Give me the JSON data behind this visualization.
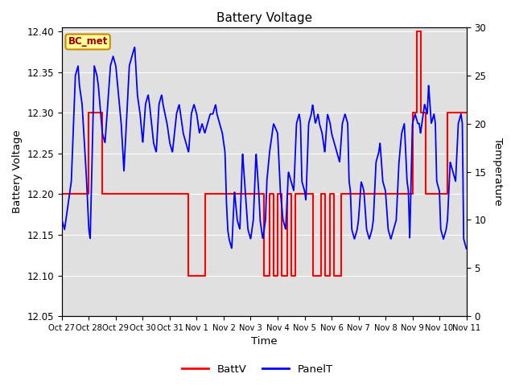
{
  "title": "Battery Voltage",
  "xlabel": "Time",
  "ylabel_left": "Battery Voltage",
  "ylabel_right": "Temperature",
  "ylim_left": [
    12.05,
    12.405
  ],
  "ylim_right": [
    0,
    30
  ],
  "yticks_left": [
    12.05,
    12.1,
    12.15,
    12.2,
    12.25,
    12.3,
    12.35,
    12.4
  ],
  "yticks_right": [
    0,
    5,
    10,
    15,
    20,
    25,
    30
  ],
  "xtick_labels": [
    "Oct 27",
    "Oct 28",
    "Oct 29",
    "Oct 30",
    "Oct 31",
    "Nov 1",
    "Nov 2",
    "Nov 3",
    "Nov 4",
    "Nov 5",
    "Nov 6",
    "Nov 7",
    "Nov 8",
    "Nov 9",
    "Nov 10",
    "Nov 11"
  ],
  "background_color": "#ffffff",
  "plot_bg_color": "#e0e0e0",
  "annotation_label": "BC_met",
  "annotation_color": "#ffff99",
  "annotation_border": "#cc8800",
  "annotation_text_color": "#990000",
  "batt_color": "#ff0000",
  "panel_color": "#0000ff",
  "legend_batt": "BattV",
  "legend_panel": "PanelT",
  "batt_baseline": 12.2,
  "batt_x": [
    0.0,
    1.0,
    1.0,
    1.5,
    1.5,
    4.7,
    4.7,
    5.3,
    5.3,
    7.05,
    7.05,
    7.35,
    7.35,
    7.5,
    7.5,
    7.7,
    7.7,
    7.85,
    7.85,
    8.0,
    8.0,
    8.15,
    8.15,
    8.35,
    8.35,
    8.5,
    8.5,
    8.65,
    8.65,
    8.8,
    8.8,
    9.3,
    9.3,
    9.6,
    9.6,
    9.75,
    9.75,
    9.95,
    9.95,
    10.1,
    10.1,
    10.35,
    10.35,
    13.0,
    13.0,
    13.15,
    13.15,
    13.3,
    13.3,
    13.5,
    13.5,
    13.7,
    13.7,
    14.0,
    14.0,
    14.3,
    14.3,
    15.0
  ],
  "batt_y": [
    12.2,
    12.2,
    12.3,
    12.3,
    12.2,
    12.2,
    12.1,
    12.1,
    12.2,
    12.2,
    12.2,
    12.2,
    12.2,
    12.2,
    12.1,
    12.1,
    12.2,
    12.2,
    12.1,
    12.1,
    12.2,
    12.2,
    12.1,
    12.1,
    12.2,
    12.2,
    12.1,
    12.1,
    12.2,
    12.2,
    12.2,
    12.2,
    12.1,
    12.1,
    12.2,
    12.2,
    12.1,
    12.1,
    12.2,
    12.2,
    12.1,
    12.1,
    12.2,
    12.2,
    12.3,
    12.3,
    12.4,
    12.4,
    12.3,
    12.3,
    12.2,
    12.2,
    12.2,
    12.2,
    12.2,
    12.2,
    12.3,
    12.3
  ],
  "panel_temp_points": [
    [
      0.0,
      10
    ],
    [
      0.1,
      9
    ],
    [
      0.2,
      11
    ],
    [
      0.3,
      13
    ],
    [
      0.35,
      14
    ],
    [
      0.5,
      25
    ],
    [
      0.6,
      26
    ],
    [
      0.65,
      24
    ],
    [
      0.75,
      22
    ],
    [
      0.9,
      15
    ],
    [
      1.0,
      9
    ],
    [
      1.05,
      8
    ],
    [
      1.2,
      26
    ],
    [
      1.3,
      25
    ],
    [
      1.35,
      24
    ],
    [
      1.5,
      19
    ],
    [
      1.6,
      18
    ],
    [
      1.8,
      26
    ],
    [
      1.9,
      27
    ],
    [
      2.0,
      26
    ],
    [
      2.1,
      23
    ],
    [
      2.2,
      20
    ],
    [
      2.3,
      15
    ],
    [
      2.5,
      26
    ],
    [
      2.6,
      27
    ],
    [
      2.7,
      28
    ],
    [
      2.8,
      23
    ],
    [
      2.9,
      21
    ],
    [
      3.0,
      18
    ],
    [
      3.1,
      22
    ],
    [
      3.2,
      23
    ],
    [
      3.25,
      22
    ],
    [
      3.4,
      18
    ],
    [
      3.5,
      17
    ],
    [
      3.6,
      22
    ],
    [
      3.7,
      23
    ],
    [
      3.75,
      22
    ],
    [
      3.9,
      20
    ],
    [
      4.0,
      18
    ],
    [
      4.1,
      17
    ],
    [
      4.25,
      21
    ],
    [
      4.35,
      22
    ],
    [
      4.4,
      21
    ],
    [
      4.5,
      19
    ],
    [
      4.6,
      18
    ],
    [
      4.7,
      17
    ],
    [
      4.8,
      21
    ],
    [
      4.9,
      22
    ],
    [
      5.0,
      21
    ],
    [
      5.1,
      19
    ],
    [
      5.2,
      20
    ],
    [
      5.3,
      19
    ],
    [
      5.4,
      20
    ],
    [
      5.5,
      21
    ],
    [
      5.55,
      21
    ],
    [
      5.6,
      21
    ],
    [
      5.7,
      22
    ],
    [
      5.75,
      21
    ],
    [
      5.85,
      20
    ],
    [
      5.95,
      19
    ],
    [
      6.0,
      18
    ],
    [
      6.05,
      17
    ],
    [
      6.1,
      12
    ],
    [
      6.15,
      9
    ],
    [
      6.2,
      8
    ],
    [
      6.3,
      7
    ],
    [
      6.4,
      13
    ],
    [
      6.5,
      10
    ],
    [
      6.6,
      9
    ],
    [
      6.7,
      17
    ],
    [
      6.8,
      13
    ],
    [
      6.9,
      9
    ],
    [
      7.0,
      8
    ],
    [
      7.1,
      10
    ],
    [
      7.2,
      17
    ],
    [
      7.3,
      13
    ],
    [
      7.35,
      10
    ],
    [
      7.45,
      8
    ],
    [
      7.55,
      10
    ],
    [
      7.6,
      14
    ],
    [
      7.7,
      17
    ],
    [
      7.75,
      18
    ],
    [
      7.85,
      20
    ],
    [
      8.0,
      19
    ],
    [
      8.1,
      13
    ],
    [
      8.2,
      10
    ],
    [
      8.3,
      9
    ],
    [
      8.4,
      15
    ],
    [
      8.5,
      14
    ],
    [
      8.6,
      13
    ],
    [
      8.7,
      20
    ],
    [
      8.8,
      21
    ],
    [
      8.85,
      20
    ],
    [
      8.9,
      14
    ],
    [
      9.0,
      13
    ],
    [
      9.05,
      12
    ],
    [
      9.15,
      20
    ],
    [
      9.25,
      21
    ],
    [
      9.3,
      22
    ],
    [
      9.4,
      20
    ],
    [
      9.5,
      21
    ],
    [
      9.55,
      20
    ],
    [
      9.65,
      19
    ],
    [
      9.7,
      18
    ],
    [
      9.75,
      17
    ],
    [
      9.85,
      21
    ],
    [
      9.95,
      20
    ],
    [
      10.0,
      19
    ],
    [
      10.1,
      18
    ],
    [
      10.2,
      17
    ],
    [
      10.3,
      16
    ],
    [
      10.4,
      20
    ],
    [
      10.5,
      21
    ],
    [
      10.6,
      20
    ],
    [
      10.65,
      14
    ],
    [
      10.7,
      13
    ],
    [
      10.75,
      9
    ],
    [
      10.85,
      8
    ],
    [
      10.95,
      9
    ],
    [
      11.0,
      10
    ],
    [
      11.1,
      14
    ],
    [
      11.2,
      13
    ],
    [
      11.3,
      9
    ],
    [
      11.4,
      8
    ],
    [
      11.5,
      9
    ],
    [
      11.55,
      10
    ],
    [
      11.65,
      16
    ],
    [
      11.75,
      17
    ],
    [
      11.8,
      18
    ],
    [
      11.9,
      14
    ],
    [
      12.0,
      13
    ],
    [
      12.1,
      9
    ],
    [
      12.2,
      8
    ],
    [
      12.3,
      9
    ],
    [
      12.4,
      10
    ],
    [
      12.5,
      16
    ],
    [
      12.6,
      19
    ],
    [
      12.7,
      20
    ],
    [
      12.8,
      14
    ],
    [
      12.85,
      13
    ],
    [
      12.9,
      8
    ],
    [
      13.0,
      20
    ],
    [
      13.1,
      21
    ],
    [
      13.2,
      20
    ],
    [
      13.25,
      20
    ],
    [
      13.3,
      19
    ],
    [
      13.35,
      20
    ],
    [
      13.45,
      22
    ],
    [
      13.55,
      21
    ],
    [
      13.6,
      24
    ],
    [
      13.7,
      20
    ],
    [
      13.8,
      21
    ],
    [
      13.85,
      20
    ],
    [
      13.9,
      14
    ],
    [
      14.0,
      13
    ],
    [
      14.05,
      9
    ],
    [
      14.15,
      8
    ],
    [
      14.25,
      9
    ],
    [
      14.3,
      10
    ],
    [
      14.4,
      16
    ],
    [
      14.5,
      15
    ],
    [
      14.6,
      14
    ],
    [
      14.7,
      20
    ],
    [
      14.8,
      21
    ],
    [
      14.85,
      20
    ],
    [
      14.9,
      8
    ],
    [
      15.0,
      7
    ]
  ]
}
